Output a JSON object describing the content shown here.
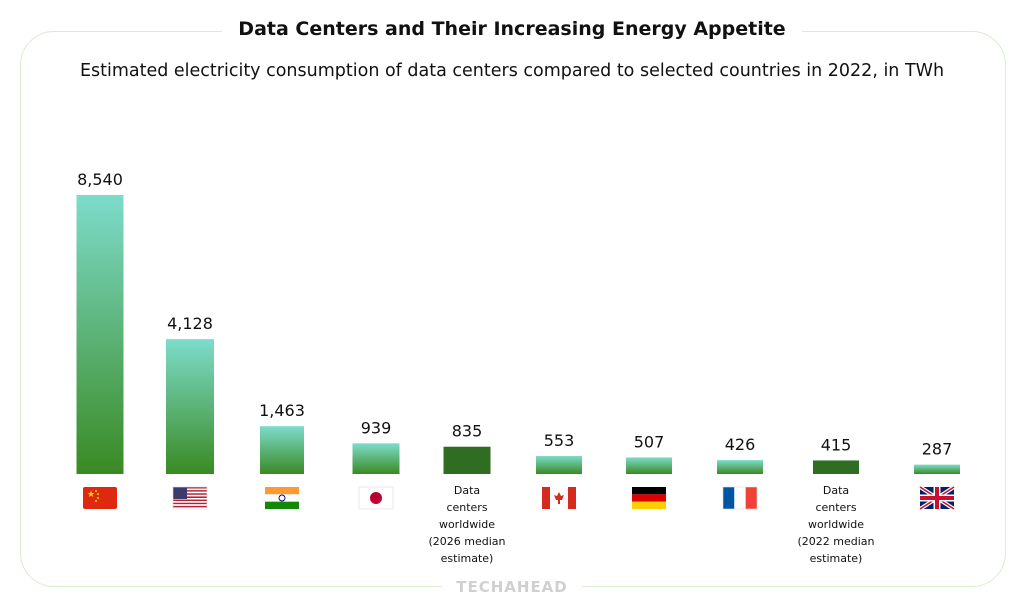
{
  "header": {
    "title": "Data Centers and Their Increasing Energy Appetite",
    "subtitle": "Estimated electricity consumption of data centers compared to selected countries in 2022, in TWh"
  },
  "watermark": "TECHAHEAD",
  "colors": {
    "bar_top": "#7ddccb",
    "bar_bottom": "#3a8a23",
    "bar_dark": "#2f6e22",
    "frame": "#d8ecd2"
  },
  "chart_data": {
    "type": "bar",
    "title": "Data Centers and Their Increasing Energy Appetite",
    "subtitle": "Estimated electricity consumption of data centers compared to selected countries in 2022, in TWh",
    "ylabel": "TWh",
    "xlabel": "",
    "ylim": [
      0,
      8540
    ],
    "categories": [
      {
        "name": "China",
        "icon": "flag-china",
        "value": 8540,
        "value_label": "8,540",
        "style": "gradient"
      },
      {
        "name": "United States",
        "icon": "flag-usa",
        "value": 4128,
        "value_label": "4,128",
        "style": "gradient"
      },
      {
        "name": "India",
        "icon": "flag-india",
        "value": 1463,
        "value_label": "1,463",
        "style": "gradient"
      },
      {
        "name": "Japan",
        "icon": "flag-japan",
        "value": 939,
        "value_label": "939",
        "style": "gradient"
      },
      {
        "name": "Data centers worldwide (2026 median estimate)",
        "label_lines": [
          "Data",
          "centers",
          "worldwide",
          "(2026 median",
          "estimate)"
        ],
        "value": 835,
        "value_label": "835",
        "style": "dark"
      },
      {
        "name": "Canada",
        "icon": "flag-canada",
        "value": 553,
        "value_label": "553",
        "style": "gradient"
      },
      {
        "name": "Germany",
        "icon": "flag-germany",
        "value": 507,
        "value_label": "507",
        "style": "gradient"
      },
      {
        "name": "France",
        "icon": "flag-france",
        "value": 426,
        "value_label": "426",
        "style": "gradient"
      },
      {
        "name": "Data centers worldwide (2022 median estimate)",
        "label_lines": [
          "Data",
          "centers",
          "worldwide",
          "(2022 median",
          "estimate)"
        ],
        "value": 415,
        "value_label": "415",
        "style": "dark"
      },
      {
        "name": "United Kingdom",
        "icon": "flag-uk",
        "value": 287,
        "value_label": "287",
        "style": "gradient"
      }
    ]
  }
}
